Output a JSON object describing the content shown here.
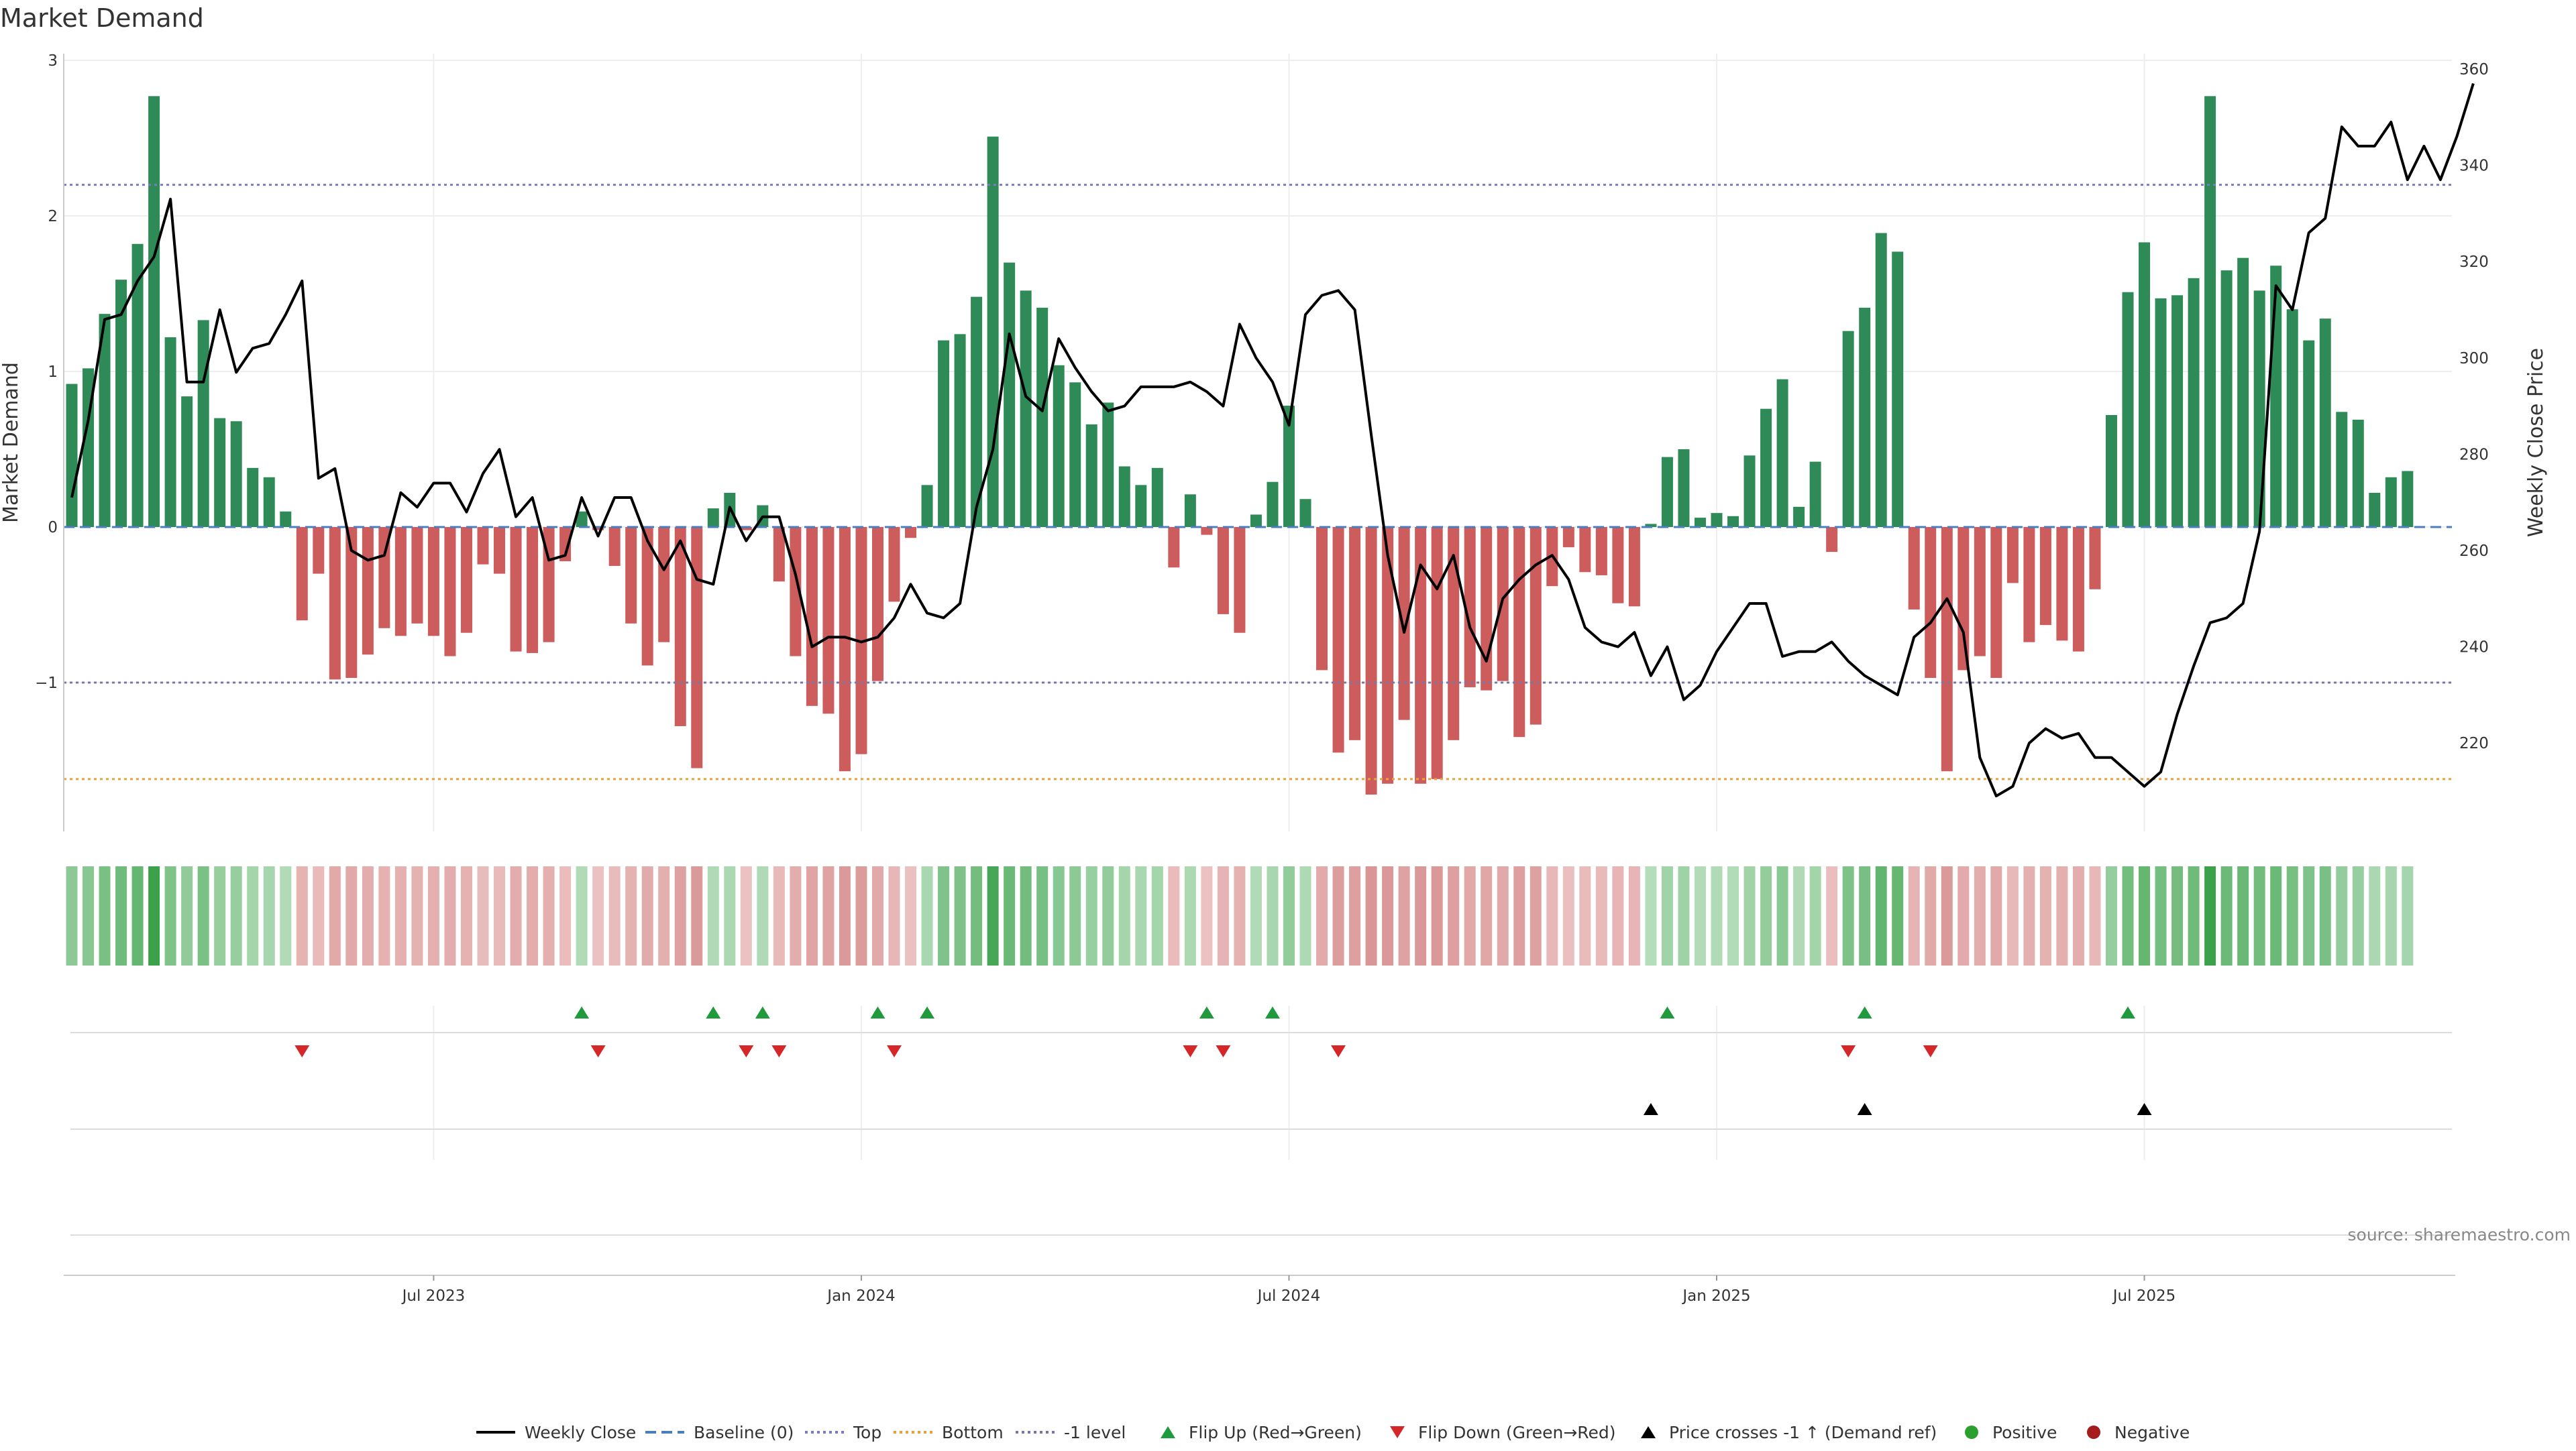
{
  "chart_data": {
    "type": "bar",
    "title": "Market Demand",
    "ylabel_left": "Market Demand",
    "ylabel_right": "Weekly Close Price",
    "ylim_left": [
      -1.95,
      3.0
    ],
    "ylim_right": [
      205,
      362
    ],
    "left_ticks": [
      "3",
      "2",
      "1",
      "0",
      "−1"
    ],
    "right_ticks": [
      "360",
      "340",
      "320",
      "300",
      "280",
      "260",
      "240",
      "220"
    ],
    "x_ticks": [
      "Jul 2023",
      "Jan 2024",
      "Jul 2024",
      "Jan 2025",
      "Jul 2025"
    ],
    "x_tick_weeks": [
      22,
      48,
      74,
      100,
      126
    ],
    "reference_lines": [
      {
        "name": "Top",
        "value": 2.2,
        "color": "#7b7bbf"
      },
      {
        "name": "-1 level",
        "value": -1.0,
        "color": "#7878a8"
      },
      {
        "name": "Bottom",
        "value": -1.62,
        "color": "#e8a23c"
      }
    ],
    "demand": [
      0.92,
      1.02,
      1.37,
      1.59,
      1.82,
      2.77,
      1.22,
      0.84,
      1.33,
      0.7,
      0.68,
      0.38,
      0.32,
      0.1,
      -0.6,
      -0.3,
      -0.98,
      -0.97,
      -0.82,
      -0.65,
      -0.7,
      -0.62,
      -0.7,
      -0.83,
      -0.68,
      -0.24,
      -0.3,
      -0.8,
      -0.81,
      -0.74,
      -0.22,
      0.1,
      -0.02,
      -0.25,
      -0.62,
      -0.89,
      -0.74,
      -1.28,
      -1.55,
      0.12,
      0.22,
      -0.02,
      0.14,
      -0.35,
      -0.83,
      -1.15,
      -1.2,
      -1.57,
      -1.46,
      -0.99,
      -0.48,
      -0.07,
      0.27,
      1.2,
      1.24,
      1.48,
      2.51,
      1.7,
      1.52,
      1.41,
      1.04,
      0.93,
      0.66,
      0.8,
      0.39,
      0.27,
      0.38,
      -0.26,
      0.21,
      -0.05,
      -0.56,
      -0.68,
      0.08,
      0.29,
      0.78,
      0.18,
      -0.92,
      -1.45,
      -1.37,
      -1.72,
      -1.65,
      -1.24,
      -1.65,
      -1.62,
      -1.37,
      -1.03,
      -1.05,
      -0.99,
      -1.35,
      -1.27,
      -0.38,
      -0.13,
      -0.29,
      -0.31,
      -0.49,
      -0.51,
      0.02,
      0.45,
      0.5,
      0.06,
      0.09,
      0.07,
      0.46,
      0.76,
      0.95,
      0.13,
      0.42,
      -0.16,
      1.26,
      1.41,
      1.89,
      1.77,
      -0.53,
      -0.97,
      -1.57,
      -0.92,
      -0.83,
      -0.97,
      -0.36,
      -0.74,
      -0.63,
      -0.73,
      -0.8,
      -0.4,
      0.72,
      1.51,
      1.83,
      1.47,
      1.49,
      1.6,
      2.77,
      1.65,
      1.73,
      1.52,
      1.68,
      1.4,
      1.2,
      1.34,
      0.74,
      0.69,
      0.22,
      0.32,
      0.36
    ],
    "weekly_close": [
      271,
      287,
      308,
      309,
      316,
      321,
      333,
      295,
      295,
      310,
      297,
      302,
      303,
      309,
      316,
      275,
      277,
      260,
      258,
      259,
      272,
      269,
      274,
      274,
      268,
      276,
      281,
      267,
      271,
      258,
      259,
      271,
      263,
      271,
      271,
      262,
      256,
      262,
      254,
      253,
      269,
      262,
      267,
      267,
      255,
      240,
      242,
      242,
      241,
      242,
      246,
      253,
      247,
      246,
      249,
      269,
      281,
      305,
      292,
      289,
      304,
      298,
      293,
      289,
      290,
      294,
      294,
      294,
      295,
      293,
      290,
      307,
      300,
      295,
      286,
      309,
      313,
      314,
      310,
      284,
      259,
      243,
      257,
      252,
      259,
      244,
      237,
      250,
      254,
      257,
      259,
      254,
      244,
      241,
      240,
      243,
      234,
      240,
      229,
      232,
      239,
      244,
      249,
      249,
      238,
      239,
      239,
      241,
      237,
      234,
      232,
      230,
      242,
      245,
      250,
      243,
      217,
      209,
      211,
      220,
      223,
      221,
      222,
      217,
      217,
      214,
      211,
      214,
      226,
      236,
      245,
      246,
      249,
      264,
      315,
      310,
      326,
      329,
      348,
      344,
      344,
      349,
      337,
      344,
      337,
      346,
      357
    ],
    "band_intensity": [
      0.92,
      1.02,
      1.37,
      1.59,
      1.82,
      2.77,
      1.22,
      0.84,
      1.33,
      0.7,
      0.68,
      0.38,
      0.32,
      0.1,
      -0.6,
      -0.3,
      -0.98,
      -0.97,
      -0.82,
      -0.65,
      -0.7,
      -0.62,
      -0.7,
      -0.83,
      -0.68,
      -0.24,
      -0.3,
      -0.8,
      -0.81,
      -0.74,
      -0.22,
      0.1,
      -0.02,
      -0.25,
      -0.62,
      -0.89,
      -0.74,
      -1.28,
      -1.55,
      0.12,
      0.22,
      -0.02,
      0.14,
      -0.35,
      -0.83,
      -1.15,
      -1.2,
      -1.57,
      -1.46,
      -0.99,
      -0.48,
      -0.07,
      0.27,
      1.2,
      1.24,
      1.48,
      2.51,
      1.7,
      1.52,
      1.41,
      1.04,
      0.93,
      0.66,
      0.8,
      0.39,
      0.27,
      0.38,
      -0.26,
      0.21,
      -0.05,
      -0.56,
      -0.68,
      0.08,
      0.29,
      0.78,
      0.18,
      -0.92,
      -1.45,
      -1.37,
      -1.72,
      -1.65,
      -1.24,
      -1.65,
      -1.62,
      -1.37,
      -1.03,
      -1.05,
      -0.99,
      -1.35,
      -1.27,
      -0.38,
      -0.13,
      -0.29,
      -0.31,
      -0.49,
      -0.51,
      0.02,
      0.45,
      0.5,
      0.06,
      0.09,
      0.07,
      0.46,
      0.76,
      0.95,
      0.13,
      0.42,
      -0.16,
      1.26,
      1.41,
      1.89,
      1.77,
      -0.53,
      -0.97,
      -1.57,
      -0.92,
      -0.83,
      -0.97,
      -0.36,
      -0.74,
      -0.63,
      -0.73,
      -0.8,
      -0.4,
      0.72,
      1.51,
      1.83,
      1.47,
      1.49,
      1.6,
      2.77,
      1.65,
      1.73,
      1.52,
      1.68,
      1.4,
      1.2,
      1.34,
      0.74,
      0.69,
      0.22,
      0.32,
      0.36
    ],
    "flip_up_weeks": [
      31,
      39,
      42,
      49,
      52,
      69,
      73,
      97,
      109,
      125
    ],
    "flip_down_weeks": [
      14,
      32,
      41,
      43,
      50,
      68,
      70,
      77,
      108,
      113
    ],
    "price_cross_weeks": [
      96,
      109,
      126
    ],
    "colors": {
      "positive": "#2e8b57",
      "negative": "#cd5c5c",
      "line": "#000000",
      "baseline": "#4a7ebf",
      "flip_up": "#1f9a3c",
      "flip_down": "#d62728",
      "cross": "#000000",
      "positive_dot": "#2ca02c",
      "negative_dot": "#a51c1c"
    },
    "legend": [
      {
        "label": "Weekly Close",
        "kind": "line",
        "color": "#000000",
        "dash": ""
      },
      {
        "label": "Baseline (0)",
        "kind": "line",
        "color": "#4a7ebf",
        "dash": "16 8"
      },
      {
        "label": "Top",
        "kind": "line",
        "color": "#7b7bbf",
        "dash": "4 5"
      },
      {
        "label": "Bottom",
        "kind": "line",
        "color": "#e8a23c",
        "dash": "4 5"
      },
      {
        "label": "-1 level",
        "kind": "line",
        "color": "#7878a8",
        "dash": "4 5"
      },
      {
        "label": "Flip Up (Red→Green)",
        "kind": "tri-up",
        "color": "#1f9a3c"
      },
      {
        "label": "Flip Down (Green→Red)",
        "kind": "tri-down",
        "color": "#d62728"
      },
      {
        "label": "Price crosses -1 ↑ (Demand ref)",
        "kind": "tri-up",
        "color": "#000000"
      },
      {
        "label": "Positive",
        "kind": "dot",
        "color": "#2ca02c"
      },
      {
        "label": "Negative",
        "kind": "dot",
        "color": "#a51c1c"
      }
    ],
    "source": "source: sharemaestro.com",
    "grid": true,
    "legend_position": "bottom"
  }
}
